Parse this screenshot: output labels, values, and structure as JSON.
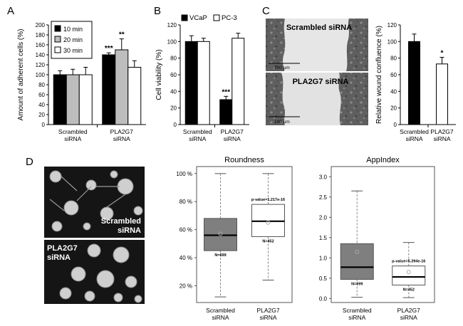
{
  "colors": {
    "black": "#000000",
    "gray": "#bdbdbd",
    "white": "#ffffff",
    "boxgray": "#7f7f7f",
    "micro": "#6e6e6e"
  },
  "panels": {
    "A": "A",
    "B": "B",
    "C": "C",
    "D": "D"
  },
  "chart_data": [
    {
      "id": "A",
      "type": "bar",
      "ylabel": "Amount of adherent cells (%)",
      "ylim": [
        0,
        200
      ],
      "yticks": [
        0,
        20,
        40,
        60,
        80,
        100,
        120,
        140,
        160,
        180,
        200
      ],
      "categories": [
        "Scrambled siRNA",
        "PLA2G7 siRNA"
      ],
      "category_lines": [
        [
          "Scrambled",
          "siRNA"
        ],
        [
          "PLA2G7",
          "siRNA"
        ]
      ],
      "series": [
        {
          "name": "10 min",
          "values": [
            100,
            140
          ],
          "err": [
            8,
            4
          ],
          "color": "#000000"
        },
        {
          "name": "20 min",
          "values": [
            100,
            150
          ],
          "err": [
            11,
            22
          ],
          "color": "#bdbdbd"
        },
        {
          "name": "30 min",
          "values": [
            100,
            115
          ],
          "err": [
            15,
            13
          ],
          "color": "#ffffff"
        }
      ],
      "annotations": [
        {
          "category": 1,
          "series": 0,
          "text": "***"
        },
        {
          "category": 1,
          "series": 1,
          "text": "**"
        }
      ],
      "legend_position": "top-left"
    },
    {
      "id": "B",
      "type": "bar",
      "ylabel": "Cell viability (%)",
      "ylim": [
        0,
        120
      ],
      "yticks": [
        0,
        20,
        40,
        60,
        80,
        100,
        120
      ],
      "categories": [
        "Scrambled siRNA",
        "PLA2G7 siRNA"
      ],
      "category_lines": [
        [
          "Scrambled",
          "siRNA"
        ],
        [
          "PLA2G7",
          "siRNA"
        ]
      ],
      "series": [
        {
          "name": "VCaP",
          "values": [
            100,
            30
          ],
          "err": [
            7,
            4
          ],
          "color": "#000000"
        },
        {
          "name": "PC-3",
          "values": [
            100,
            104
          ],
          "err": [
            4,
            6
          ],
          "color": "#ffffff"
        }
      ],
      "annotations": [
        {
          "category": 1,
          "series": 0,
          "text": "***"
        }
      ],
      "legend_position": "top"
    },
    {
      "id": "C",
      "type": "bar",
      "ylabel": "Relative wound confluence (%)",
      "ylim": [
        0,
        120
      ],
      "yticks": [
        0,
        20,
        40,
        60,
        80,
        100,
        120
      ],
      "categories": [
        "Scrambled siRNA",
        "PLA2G7 siRNA"
      ],
      "category_lines": [
        [
          "Scrambled",
          "siRNA"
        ],
        [
          "PLA2G7",
          "siRNA"
        ]
      ],
      "series": [
        {
          "name": "confluence",
          "values": [
            100,
            73
          ],
          "err": [
            9,
            8
          ],
          "colors": [
            "#000000",
            "#ffffff"
          ]
        }
      ],
      "annotations": [
        {
          "category": 1,
          "series": 0,
          "text": "*"
        }
      ]
    },
    {
      "id": "D1",
      "type": "boxplot",
      "title": "Roundness",
      "ylim": [
        0.08,
        1.05
      ],
      "yticks": [
        0.2,
        0.4,
        0.6,
        0.8,
        1.0
      ],
      "yticklabels": [
        "20 %",
        "40 %",
        "60 %",
        "80 %",
        "100 %"
      ],
      "categories": [
        "Scrambled siRNA",
        "PLA2G7 siRNA"
      ],
      "category_lines": [
        [
          "Scrambled",
          "siRNA"
        ],
        [
          "PLA2G7",
          "siRNA"
        ]
      ],
      "boxes": [
        {
          "min": 0.12,
          "q1": 0.45,
          "median": 0.56,
          "mean": 0.57,
          "q3": 0.68,
          "max": 1.0,
          "n_label": "N=699",
          "fill": "#7f7f7f"
        },
        {
          "min": 0.24,
          "q1": 0.55,
          "median": 0.66,
          "mean": 0.65,
          "q3": 0.78,
          "max": 1.0,
          "n_label": "N=452",
          "fill": "#ffffff",
          "pvalue": "p-value=1.217e-16"
        }
      ]
    },
    {
      "id": "D2",
      "type": "boxplot",
      "title": "AppIndex",
      "ylim": [
        -0.1,
        3.25
      ],
      "yticks": [
        0.0,
        0.5,
        1.0,
        1.5,
        2.0,
        2.5,
        3.0
      ],
      "yticklabels": [
        "0.0",
        "0.5",
        "1.0",
        "1.5",
        "2.0",
        "2.5",
        "3.0"
      ],
      "categories": [
        "Scrambled siRNA",
        "PLA2G7 siRNA"
      ],
      "category_lines": [
        [
          "Scrambled",
          "siRNA"
        ],
        [
          "PLA2G7",
          "siRNA"
        ]
      ],
      "boxes": [
        {
          "min": 0.03,
          "q1": 0.47,
          "median": 0.77,
          "mean": 1.15,
          "q3": 1.35,
          "max": 2.65,
          "n_label": "N=699",
          "fill": "#7f7f7f"
        },
        {
          "min": 0.02,
          "q1": 0.33,
          "median": 0.53,
          "mean": 0.65,
          "q3": 0.8,
          "max": 1.38,
          "n_label": "N=452",
          "fill": "#ffffff",
          "pvalue": "p-value=5.394e-16"
        }
      ]
    }
  ],
  "micrographs": {
    "C_top_label": "Scrambled siRNA",
    "C_bottom_label": "PLA2G7 siRNA",
    "C_scale_top": "100 μm",
    "C_scale_bottom": "100 μm",
    "D_top_label": [
      "Scrambled",
      "siRNA"
    ],
    "D_bottom_label": [
      "PLA2G7",
      "siRNA"
    ]
  }
}
